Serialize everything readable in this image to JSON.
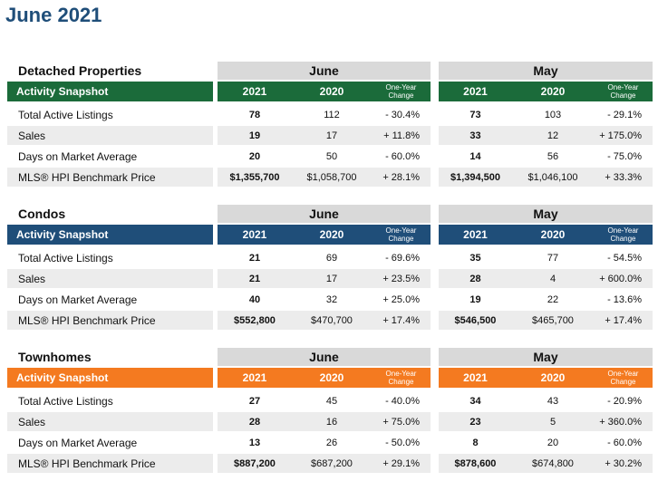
{
  "title": "June 2021",
  "sections": [
    {
      "name": "Detached Properties",
      "color": "#1b6b3a",
      "snapshot": "Activity Snapshot",
      "periods": [
        "June",
        "May"
      ],
      "columns": [
        "2021",
        "2020",
        "One-Year Change"
      ],
      "rows": [
        {
          "label": "Total Active Listings",
          "values": [
            "78",
            "112",
            "- 30.4%",
            "73",
            "103",
            "- 29.1%"
          ]
        },
        {
          "label": "Sales",
          "values": [
            "19",
            "17",
            "+ 11.8%",
            "33",
            "12",
            "+ 175.0%"
          ]
        },
        {
          "label": "Days on Market Average",
          "values": [
            "20",
            "50",
            "- 60.0%",
            "14",
            "56",
            "- 75.0%"
          ]
        },
        {
          "label": "MLS® HPI Benchmark Price",
          "values": [
            "$1,355,700",
            "$1,058,700",
            "+ 28.1%",
            "$1,394,500",
            "$1,046,100",
            "+ 33.3%"
          ]
        }
      ]
    },
    {
      "name": "Condos",
      "color": "#1f4e79",
      "snapshot": "Activity Snapshot",
      "periods": [
        "June",
        "May"
      ],
      "columns": [
        "2021",
        "2020",
        "One-Year Change"
      ],
      "rows": [
        {
          "label": "Total Active Listings",
          "values": [
            "21",
            "69",
            "- 69.6%",
            "35",
            "77",
            "- 54.5%"
          ]
        },
        {
          "label": "Sales",
          "values": [
            "21",
            "17",
            "+ 23.5%",
            "28",
            "4",
            "+ 600.0%"
          ]
        },
        {
          "label": "Days on Market Average",
          "values": [
            "40",
            "32",
            "+ 25.0%",
            "19",
            "22",
            "- 13.6%"
          ]
        },
        {
          "label": "MLS® HPI Benchmark Price",
          "values": [
            "$552,800",
            "$470,700",
            "+ 17.4%",
            "$546,500",
            "$465,700",
            "+ 17.4%"
          ]
        }
      ]
    },
    {
      "name": "Townhomes",
      "color": "#f47a20",
      "snapshot": "Activity Snapshot",
      "periods": [
        "June",
        "May"
      ],
      "columns": [
        "2021",
        "2020",
        "One-Year Change"
      ],
      "rows": [
        {
          "label": "Total Active Listings",
          "values": [
            "27",
            "45",
            "- 40.0%",
            "34",
            "43",
            "- 20.9%"
          ]
        },
        {
          "label": "Sales",
          "values": [
            "28",
            "16",
            "+ 75.0%",
            "23",
            "5",
            "+ 360.0%"
          ]
        },
        {
          "label": "Days on Market Average",
          "values": [
            "13",
            "26",
            "- 50.0%",
            "8",
            "20",
            "- 60.0%"
          ]
        },
        {
          "label": "MLS® HPI Benchmark Price",
          "values": [
            "$887,200",
            "$687,200",
            "+ 29.1%",
            "$878,600",
            "$674,800",
            "+ 30.2%"
          ]
        }
      ]
    }
  ]
}
